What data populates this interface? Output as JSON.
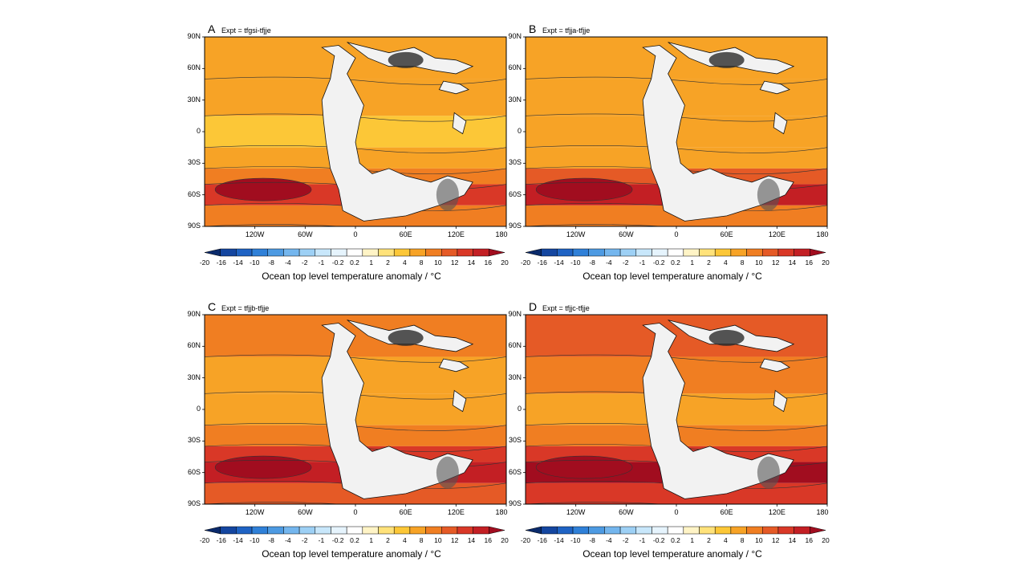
{
  "chart_data": [
    {
      "type": "heatmap",
      "panel": "A",
      "title": "Expt = tfgsi-tfjje",
      "x_ticks": [
        "120W",
        "60W",
        "0",
        "60E",
        "120E",
        "180"
      ],
      "y_ticks": [
        "90N",
        "60N",
        "30N",
        "0",
        "30S",
        "60S",
        "90S"
      ],
      "xlim": [
        -180,
        180
      ],
      "ylim": [
        -90,
        90
      ],
      "bands": [
        {
          "lat": [
            50,
            90
          ],
          "value": 6
        },
        {
          "lat": [
            15,
            50
          ],
          "value": 5
        },
        {
          "lat": [
            -15,
            15
          ],
          "value": 3
        },
        {
          "lat": [
            -35,
            -15
          ],
          "value": 5
        },
        {
          "lat": [
            -50,
            -35
          ],
          "value": 9
        },
        {
          "lat": [
            -70,
            -50
          ],
          "value": 13
        },
        {
          "lat": [
            -90,
            -70
          ],
          "value": 8
        }
      ],
      "colorbar_label": "Ocean top level temperature anomaly / °C"
    },
    {
      "type": "heatmap",
      "panel": "B",
      "title": "Expt = tfjja-tfjje",
      "x_ticks": [
        "120W",
        "60W",
        "0",
        "60E",
        "120E",
        "180"
      ],
      "y_ticks": [
        "90N",
        "60N",
        "30N",
        "0",
        "30S",
        "60S",
        "90S"
      ],
      "xlim": [
        -180,
        180
      ],
      "ylim": [
        -90,
        90
      ],
      "bands": [
        {
          "lat": [
            50,
            90
          ],
          "value": 7
        },
        {
          "lat": [
            15,
            50
          ],
          "value": 6
        },
        {
          "lat": [
            -15,
            15
          ],
          "value": 4
        },
        {
          "lat": [
            -35,
            -15
          ],
          "value": 7
        },
        {
          "lat": [
            -50,
            -35
          ],
          "value": 11
        },
        {
          "lat": [
            -70,
            -50
          ],
          "value": 15
        },
        {
          "lat": [
            -90,
            -70
          ],
          "value": 9
        }
      ],
      "colorbar_label": "Ocean top level temperature anomaly / °C"
    },
    {
      "type": "heatmap",
      "panel": "C",
      "title": "Expt = tfjjb-tfjje",
      "x_ticks": [
        "120W",
        "60W",
        "0",
        "60E",
        "120E",
        "180"
      ],
      "y_ticks": [
        "90N",
        "60N",
        "30N",
        "0",
        "30S",
        "60S",
        "90S"
      ],
      "xlim": [
        -180,
        180
      ],
      "ylim": [
        -90,
        90
      ],
      "bands": [
        {
          "lat": [
            50,
            90
          ],
          "value": 9
        },
        {
          "lat": [
            15,
            50
          ],
          "value": 7
        },
        {
          "lat": [
            -15,
            15
          ],
          "value": 5
        },
        {
          "lat": [
            -35,
            -15
          ],
          "value": 8
        },
        {
          "lat": [
            -50,
            -35
          ],
          "value": 12
        },
        {
          "lat": [
            -70,
            -50
          ],
          "value": 15
        },
        {
          "lat": [
            -90,
            -70
          ],
          "value": 11
        }
      ],
      "colorbar_label": "Ocean top level temperature anomaly / °C"
    },
    {
      "type": "heatmap",
      "panel": "D",
      "title": "Expt = tfjjc-tfjje",
      "x_ticks": [
        "120W",
        "60W",
        "0",
        "60E",
        "120E",
        "180"
      ],
      "y_ticks": [
        "90N",
        "60N",
        "30N",
        "0",
        "30S",
        "60S",
        "90S"
      ],
      "xlim": [
        -180,
        180
      ],
      "ylim": [
        -90,
        90
      ],
      "bands": [
        {
          "lat": [
            50,
            90
          ],
          "value": 10
        },
        {
          "lat": [
            15,
            50
          ],
          "value": 8
        },
        {
          "lat": [
            -15,
            15
          ],
          "value": 6
        },
        {
          "lat": [
            -35,
            -15
          ],
          "value": 9
        },
        {
          "lat": [
            -50,
            -35
          ],
          "value": 13
        },
        {
          "lat": [
            -70,
            -50
          ],
          "value": 16
        },
        {
          "lat": [
            -90,
            -70
          ],
          "value": 12
        }
      ],
      "colorbar_label": "Ocean top level temperature anomaly / °C"
    }
  ],
  "colorbar": {
    "levels": [
      "-20",
      "-16",
      "-14",
      "-10",
      "-8",
      "-4",
      "-2",
      "-1",
      "-0.2",
      "0.2",
      "1",
      "2",
      "4",
      "8",
      "10",
      "12",
      "14",
      "16",
      "20"
    ],
    "colors": [
      "#0a2a6b",
      "#1446a0",
      "#1f63c4",
      "#2f80d8",
      "#4d9ae2",
      "#74b6ee",
      "#9dd0f5",
      "#c8e7fb",
      "#e6f4fd",
      "#ffffff",
      "#fff4c6",
      "#ffe27a",
      "#fcc737",
      "#f7a326",
      "#f07e22",
      "#e55a26",
      "#d93827",
      "#c31f24",
      "#a10d1f"
    ]
  },
  "panel_letters": [
    "A",
    "B",
    "C",
    "D"
  ]
}
